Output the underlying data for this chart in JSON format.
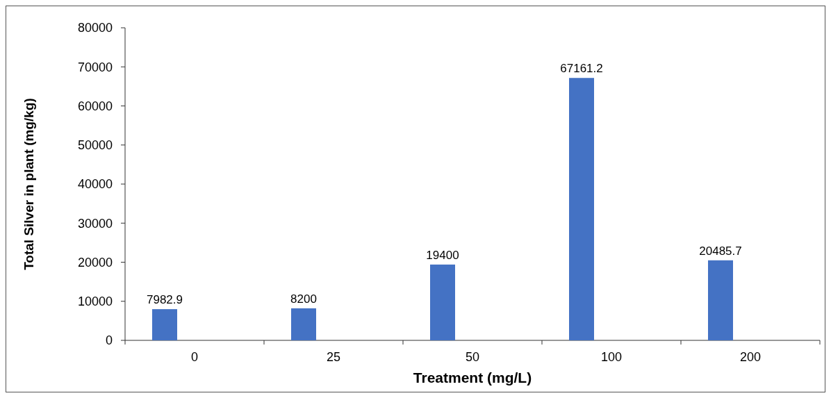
{
  "chart_data": {
    "type": "bar",
    "xlabel": "Treatment (mg/L)",
    "ylabel": "Total Silver in plant (mg/kg)",
    "categories": [
      "0",
      "25",
      "50",
      "100",
      "200"
    ],
    "series": [
      {
        "color": "#4472c4",
        "values": [
          7982.9,
          8200,
          19400,
          67161.2,
          20485.7
        ]
      }
    ],
    "ylim": [
      0,
      80000
    ],
    "yticks": [
      0,
      10000,
      20000,
      30000,
      40000,
      50000,
      60000,
      70000,
      80000
    ],
    "data_labels": true,
    "grid": false
  }
}
